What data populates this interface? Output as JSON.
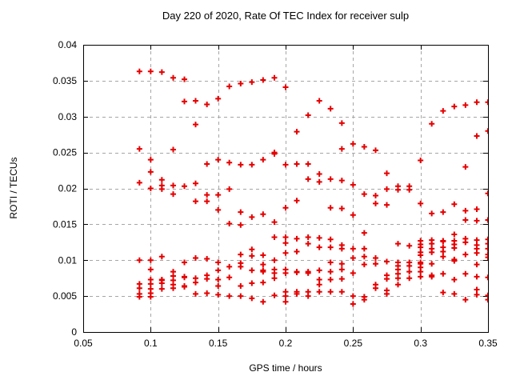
{
  "window": {
    "background": "#ffffff"
  },
  "chart_data": {
    "type": "scatter",
    "title": "Day 220 of 2020, Rate Of TEC Index for receiver sulp",
    "xlabel": "GPS time / hours",
    "ylabel": "ROTI / TECUs",
    "xlim": [
      0.05,
      0.35
    ],
    "ylim": [
      0,
      0.04
    ],
    "xticks": [
      0.05,
      0.1,
      0.15,
      0.2,
      0.25,
      0.3,
      0.35
    ],
    "xtick_labels": [
      "0.05",
      "0.1",
      "0.15",
      "0.2",
      "0.25",
      "0.3",
      "0.35"
    ],
    "yticks": [
      0,
      0.005,
      0.01,
      0.015,
      0.02,
      0.025,
      0.03,
      0.035,
      0.04
    ],
    "ytick_labels": [
      "0",
      "0.005",
      "0.01",
      "0.015",
      "0.02",
      "0.025",
      "0.03",
      "0.035",
      "0.04"
    ],
    "grid": true,
    "grid_color": "#a6a6a6",
    "border_color": "#000000",
    "marker": "plus",
    "marker_color": "#e60000",
    "legend": null,
    "points": [
      [
        0.0917,
        0.0363
      ],
      [
        0.0917,
        0.0255
      ],
      [
        0.0917,
        0.0208
      ],
      [
        0.0917,
        0.01
      ],
      [
        0.0917,
        0.0067
      ],
      [
        0.0917,
        0.0061
      ],
      [
        0.0917,
        0.0053
      ],
      [
        0.0917,
        0.0049
      ],
      [
        0.1,
        0.0363
      ],
      [
        0.1,
        0.024
      ],
      [
        0.1,
        0.0223
      ],
      [
        0.1,
        0.02
      ],
      [
        0.1,
        0.01
      ],
      [
        0.1,
        0.0087
      ],
      [
        0.1,
        0.0073
      ],
      [
        0.1,
        0.0067
      ],
      [
        0.1,
        0.006
      ],
      [
        0.1,
        0.0054
      ],
      [
        0.1,
        0.0049
      ],
      [
        0.1083,
        0.0362
      ],
      [
        0.1083,
        0.0212
      ],
      [
        0.1083,
        0.0204
      ],
      [
        0.1083,
        0.0199
      ],
      [
        0.1083,
        0.0105
      ],
      [
        0.1083,
        0.0073
      ],
      [
        0.1083,
        0.0072
      ],
      [
        0.1083,
        0.0068
      ],
      [
        0.1083,
        0.006
      ],
      [
        0.1167,
        0.0354
      ],
      [
        0.1167,
        0.0254
      ],
      [
        0.1167,
        0.0204
      ],
      [
        0.1167,
        0.0192
      ],
      [
        0.1167,
        0.0084
      ],
      [
        0.1167,
        0.0078
      ],
      [
        0.1167,
        0.0072
      ],
      [
        0.1167,
        0.0066
      ],
      [
        0.1167,
        0.0061
      ],
      [
        0.125,
        0.0352
      ],
      [
        0.125,
        0.0321
      ],
      [
        0.125,
        0.0203
      ],
      [
        0.125,
        0.0097
      ],
      [
        0.125,
        0.0077
      ],
      [
        0.125,
        0.0076
      ],
      [
        0.125,
        0.0064
      ],
      [
        0.125,
        0.0063
      ],
      [
        0.1333,
        0.0322
      ],
      [
        0.1333,
        0.0289
      ],
      [
        0.1333,
        0.0207
      ],
      [
        0.1333,
        0.0182
      ],
      [
        0.1333,
        0.0103
      ],
      [
        0.1333,
        0.0075
      ],
      [
        0.1333,
        0.0069
      ],
      [
        0.1333,
        0.0053
      ],
      [
        0.1417,
        0.0317
      ],
      [
        0.1417,
        0.0234
      ],
      [
        0.1417,
        0.0191
      ],
      [
        0.1417,
        0.0182
      ],
      [
        0.1417,
        0.0102
      ],
      [
        0.1417,
        0.0079
      ],
      [
        0.1417,
        0.0074
      ],
      [
        0.1417,
        0.0054
      ],
      [
        0.15,
        0.0325
      ],
      [
        0.15,
        0.024
      ],
      [
        0.15,
        0.0191
      ],
      [
        0.15,
        0.017
      ],
      [
        0.15,
        0.0097
      ],
      [
        0.15,
        0.0086
      ],
      [
        0.15,
        0.0073
      ],
      [
        0.15,
        0.0064
      ],
      [
        0.15,
        0.0052
      ],
      [
        0.1583,
        0.0342
      ],
      [
        0.1583,
        0.0236
      ],
      [
        0.1583,
        0.0199
      ],
      [
        0.1583,
        0.0151
      ],
      [
        0.1583,
        0.0091
      ],
      [
        0.1583,
        0.0076
      ],
      [
        0.1583,
        0.005
      ],
      [
        0.1667,
        0.0346
      ],
      [
        0.1667,
        0.0233
      ],
      [
        0.1667,
        0.0167
      ],
      [
        0.1667,
        0.0149
      ],
      [
        0.1667,
        0.0108
      ],
      [
        0.1667,
        0.0096
      ],
      [
        0.1667,
        0.0091
      ],
      [
        0.1667,
        0.0064
      ],
      [
        0.1667,
        0.005
      ],
      [
        0.175,
        0.0348
      ],
      [
        0.175,
        0.0233
      ],
      [
        0.175,
        0.016
      ],
      [
        0.175,
        0.0115
      ],
      [
        0.175,
        0.0106
      ],
      [
        0.175,
        0.0086
      ],
      [
        0.175,
        0.0068
      ],
      [
        0.175,
        0.0047
      ],
      [
        0.1833,
        0.0351
      ],
      [
        0.1833,
        0.024
      ],
      [
        0.1833,
        0.0164
      ],
      [
        0.1833,
        0.0107
      ],
      [
        0.1833,
        0.0094
      ],
      [
        0.1833,
        0.0086
      ],
      [
        0.1833,
        0.0084
      ],
      [
        0.1833,
        0.0069
      ],
      [
        0.1833,
        0.0042
      ],
      [
        0.1917,
        0.0354
      ],
      [
        0.1917,
        0.025
      ],
      [
        0.1917,
        0.0248
      ],
      [
        0.1917,
        0.0153
      ],
      [
        0.1917,
        0.0132
      ],
      [
        0.1917,
        0.01
      ],
      [
        0.1917,
        0.0087
      ],
      [
        0.1917,
        0.0082
      ],
      [
        0.1917,
        0.0075
      ],
      [
        0.1917,
        0.0051
      ],
      [
        0.2,
        0.0341
      ],
      [
        0.2,
        0.0233
      ],
      [
        0.2,
        0.0173
      ],
      [
        0.2,
        0.0132
      ],
      [
        0.2,
        0.0124
      ],
      [
        0.2,
        0.011
      ],
      [
        0.2,
        0.0087
      ],
      [
        0.2,
        0.0082
      ],
      [
        0.2,
        0.0056
      ],
      [
        0.2,
        0.005
      ],
      [
        0.2,
        0.0042
      ],
      [
        0.2083,
        0.0279
      ],
      [
        0.2083,
        0.0234
      ],
      [
        0.2083,
        0.0183
      ],
      [
        0.2083,
        0.013
      ],
      [
        0.2083,
        0.0112
      ],
      [
        0.2083,
        0.0084
      ],
      [
        0.2083,
        0.0083
      ],
      [
        0.2083,
        0.0056
      ],
      [
        0.2083,
        0.0053
      ],
      [
        0.2167,
        0.0302
      ],
      [
        0.2167,
        0.0234
      ],
      [
        0.2167,
        0.0213
      ],
      [
        0.2167,
        0.0132
      ],
      [
        0.2167,
        0.0123
      ],
      [
        0.2167,
        0.0084
      ],
      [
        0.2167,
        0.0082
      ],
      [
        0.2167,
        0.0056
      ],
      [
        0.2167,
        0.005
      ],
      [
        0.225,
        0.0322
      ],
      [
        0.225,
        0.022
      ],
      [
        0.225,
        0.0209
      ],
      [
        0.225,
        0.0131
      ],
      [
        0.225,
        0.0118
      ],
      [
        0.225,
        0.0086
      ],
      [
        0.225,
        0.0073
      ],
      [
        0.225,
        0.0066
      ],
      [
        0.225,
        0.0056
      ],
      [
        0.2333,
        0.0311
      ],
      [
        0.2333,
        0.0213
      ],
      [
        0.2333,
        0.0173
      ],
      [
        0.2333,
        0.0129
      ],
      [
        0.2333,
        0.0118
      ],
      [
        0.2333,
        0.0097
      ],
      [
        0.2333,
        0.0084
      ],
      [
        0.2333,
        0.0073
      ],
      [
        0.2333,
        0.0056
      ],
      [
        0.2417,
        0.0291
      ],
      [
        0.2417,
        0.0255
      ],
      [
        0.2417,
        0.0211
      ],
      [
        0.2417,
        0.0172
      ],
      [
        0.2417,
        0.0121
      ],
      [
        0.2417,
        0.0116
      ],
      [
        0.2417,
        0.0095
      ],
      [
        0.2417,
        0.0087
      ],
      [
        0.2417,
        0.0074
      ],
      [
        0.2417,
        0.0056
      ],
      [
        0.25,
        0.0262
      ],
      [
        0.25,
        0.0205
      ],
      [
        0.25,
        0.0163
      ],
      [
        0.25,
        0.0116
      ],
      [
        0.25,
        0.0103
      ],
      [
        0.25,
        0.0082
      ],
      [
        0.25,
        0.005
      ],
      [
        0.25,
        0.0039
      ],
      [
        0.2583,
        0.0258
      ],
      [
        0.2583,
        0.0192
      ],
      [
        0.2583,
        0.0138
      ],
      [
        0.2583,
        0.0116
      ],
      [
        0.2583,
        0.0105
      ],
      [
        0.2583,
        0.0094
      ],
      [
        0.2583,
        0.0049
      ],
      [
        0.2583,
        0.0045
      ],
      [
        0.2667,
        0.0253
      ],
      [
        0.2667,
        0.019
      ],
      [
        0.2667,
        0.0179
      ],
      [
        0.2667,
        0.0103
      ],
      [
        0.2667,
        0.0095
      ],
      [
        0.2667,
        0.0066
      ],
      [
        0.2667,
        0.0061
      ],
      [
        0.275,
        0.0221
      ],
      [
        0.275,
        0.0199
      ],
      [
        0.275,
        0.0177
      ],
      [
        0.275,
        0.0098
      ],
      [
        0.275,
        0.0079
      ],
      [
        0.275,
        0.0074
      ],
      [
        0.275,
        0.0058
      ],
      [
        0.275,
        0.0053
      ],
      [
        0.2833,
        0.0203
      ],
      [
        0.2833,
        0.0198
      ],
      [
        0.2833,
        0.0123
      ],
      [
        0.2833,
        0.0097
      ],
      [
        0.2833,
        0.0092
      ],
      [
        0.2833,
        0.0087
      ],
      [
        0.2833,
        0.0081
      ],
      [
        0.2833,
        0.0075
      ],
      [
        0.2833,
        0.0066
      ],
      [
        0.2917,
        0.0203
      ],
      [
        0.2917,
        0.0198
      ],
      [
        0.2917,
        0.012
      ],
      [
        0.2917,
        0.0097
      ],
      [
        0.2917,
        0.0092
      ],
      [
        0.2917,
        0.0084
      ],
      [
        0.2917,
        0.0075
      ],
      [
        0.3,
        0.0239
      ],
      [
        0.3,
        0.0179
      ],
      [
        0.3,
        0.0127
      ],
      [
        0.3,
        0.0122
      ],
      [
        0.3,
        0.0118
      ],
      [
        0.3,
        0.0111
      ],
      [
        0.3,
        0.0107
      ],
      [
        0.3,
        0.0097
      ],
      [
        0.3,
        0.0095
      ],
      [
        0.3,
        0.009
      ],
      [
        0.3,
        0.0084
      ],
      [
        0.3,
        0.0077
      ],
      [
        0.3083,
        0.029
      ],
      [
        0.3083,
        0.0165
      ],
      [
        0.3083,
        0.0128
      ],
      [
        0.3083,
        0.0123
      ],
      [
        0.3083,
        0.0116
      ],
      [
        0.3083,
        0.0111
      ],
      [
        0.3083,
        0.0095
      ],
      [
        0.3083,
        0.0079
      ],
      [
        0.3083,
        0.0077
      ],
      [
        0.3167,
        0.0308
      ],
      [
        0.3167,
        0.0167
      ],
      [
        0.3167,
        0.0127
      ],
      [
        0.3167,
        0.0126
      ],
      [
        0.3167,
        0.0118
      ],
      [
        0.3167,
        0.0112
      ],
      [
        0.3167,
        0.0105
      ],
      [
        0.3167,
        0.0081
      ],
      [
        0.3167,
        0.0055
      ],
      [
        0.325,
        0.0314
      ],
      [
        0.325,
        0.0178
      ],
      [
        0.325,
        0.0136
      ],
      [
        0.325,
        0.0127
      ],
      [
        0.325,
        0.0122
      ],
      [
        0.325,
        0.0117
      ],
      [
        0.325,
        0.0101
      ],
      [
        0.325,
        0.0099
      ],
      [
        0.325,
        0.0073
      ],
      [
        0.325,
        0.0053
      ],
      [
        0.3333,
        0.0316
      ],
      [
        0.3333,
        0.023
      ],
      [
        0.3333,
        0.0169
      ],
      [
        0.3333,
        0.0156
      ],
      [
        0.3333,
        0.013
      ],
      [
        0.3333,
        0.0125
      ],
      [
        0.3333,
        0.0108
      ],
      [
        0.3333,
        0.0081
      ],
      [
        0.3333,
        0.0045
      ],
      [
        0.3417,
        0.032
      ],
      [
        0.3417,
        0.0273
      ],
      [
        0.3417,
        0.0171
      ],
      [
        0.3417,
        0.0155
      ],
      [
        0.3417,
        0.0128
      ],
      [
        0.3417,
        0.0121
      ],
      [
        0.3417,
        0.0116
      ],
      [
        0.3417,
        0.011
      ],
      [
        0.3417,
        0.0094
      ],
      [
        0.3417,
        0.0077
      ],
      [
        0.3417,
        0.0059
      ],
      [
        0.3417,
        0.0052
      ],
      [
        0.35,
        0.032
      ],
      [
        0.35,
        0.028
      ],
      [
        0.35,
        0.0193
      ],
      [
        0.35,
        0.0156
      ],
      [
        0.35,
        0.0129
      ],
      [
        0.35,
        0.0123
      ],
      [
        0.35,
        0.0116
      ],
      [
        0.35,
        0.0108
      ],
      [
        0.35,
        0.0104
      ],
      [
        0.35,
        0.0076
      ],
      [
        0.35,
        0.0051
      ],
      [
        0.35,
        0.0045
      ]
    ]
  }
}
